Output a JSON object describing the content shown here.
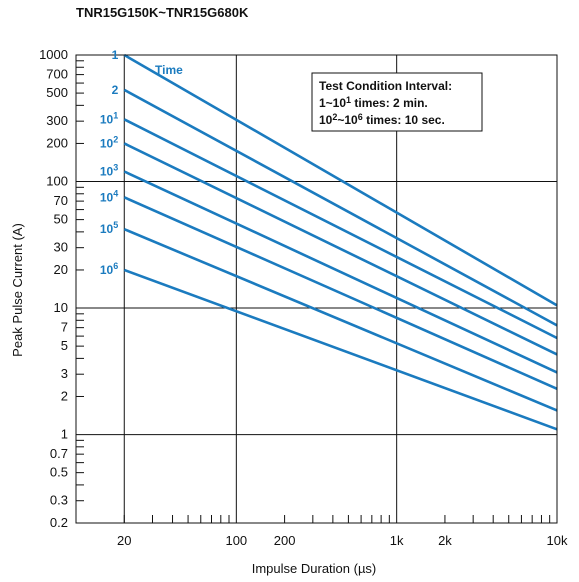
{
  "chart_data": {
    "type": "line",
    "title": "TNR15G150K~TNR15G680K",
    "xlabel": "Impulse Duration (µs)",
    "ylabel": "Peak Pulse Current (A)",
    "x_scale": "log",
    "y_scale": "log",
    "xlim": [
      10,
      10000
    ],
    "ylim": [
      0.2,
      1000
    ],
    "x_tick_labels": [
      {
        "value": 20,
        "label": "20"
      },
      {
        "value": 100,
        "label": "100"
      },
      {
        "value": 200,
        "label": "200"
      },
      {
        "value": 1000,
        "label": "1k"
      },
      {
        "value": 2000,
        "label": "2k"
      },
      {
        "value": 10000,
        "label": "10k"
      }
    ],
    "y_tick_labels": [
      1000,
      700,
      500,
      300,
      200,
      100,
      70,
      50,
      30,
      20,
      10,
      7,
      5,
      3,
      2,
      1,
      0.7,
      0.5,
      0.3,
      0.2
    ],
    "grid": "major decades",
    "series_line_color": "#1b7bbf",
    "series_header": "Time",
    "series": [
      {
        "label_base": "1",
        "label_exp": "",
        "x": [
          20,
          10000
        ],
        "y": [
          1000,
          10.5
        ]
      },
      {
        "label_base": "2",
        "label_exp": "",
        "x": [
          20,
          10000
        ],
        "y": [
          530,
          7.3
        ]
      },
      {
        "label_base": "10",
        "label_exp": "1",
        "x": [
          20,
          10000
        ],
        "y": [
          310,
          5.8
        ]
      },
      {
        "label_base": "10",
        "label_exp": "2",
        "x": [
          20,
          10000
        ],
        "y": [
          200,
          4.3
        ]
      },
      {
        "label_base": "10",
        "label_exp": "3",
        "x": [
          20,
          10000
        ],
        "y": [
          120,
          3.1
        ]
      },
      {
        "label_base": "10",
        "label_exp": "4",
        "x": [
          20,
          10000
        ],
        "y": [
          75,
          2.3
        ]
      },
      {
        "label_base": "10",
        "label_exp": "5",
        "x": [
          20,
          10000
        ],
        "y": [
          42,
          1.55
        ]
      },
      {
        "label_base": "10",
        "label_exp": "6",
        "x": [
          20,
          10000
        ],
        "y": [
          20,
          1.1
        ]
      }
    ],
    "annotation": {
      "line1": "Test Condition Interval:",
      "line2_a": "1~10",
      "line2_sup": "1",
      "line2_b": " times: 2 min.",
      "line3_a": "10",
      "line3_sup1": "2",
      "line3_b": "~10",
      "line3_sup2": "6",
      "line3_c": " times: 10 sec."
    }
  }
}
